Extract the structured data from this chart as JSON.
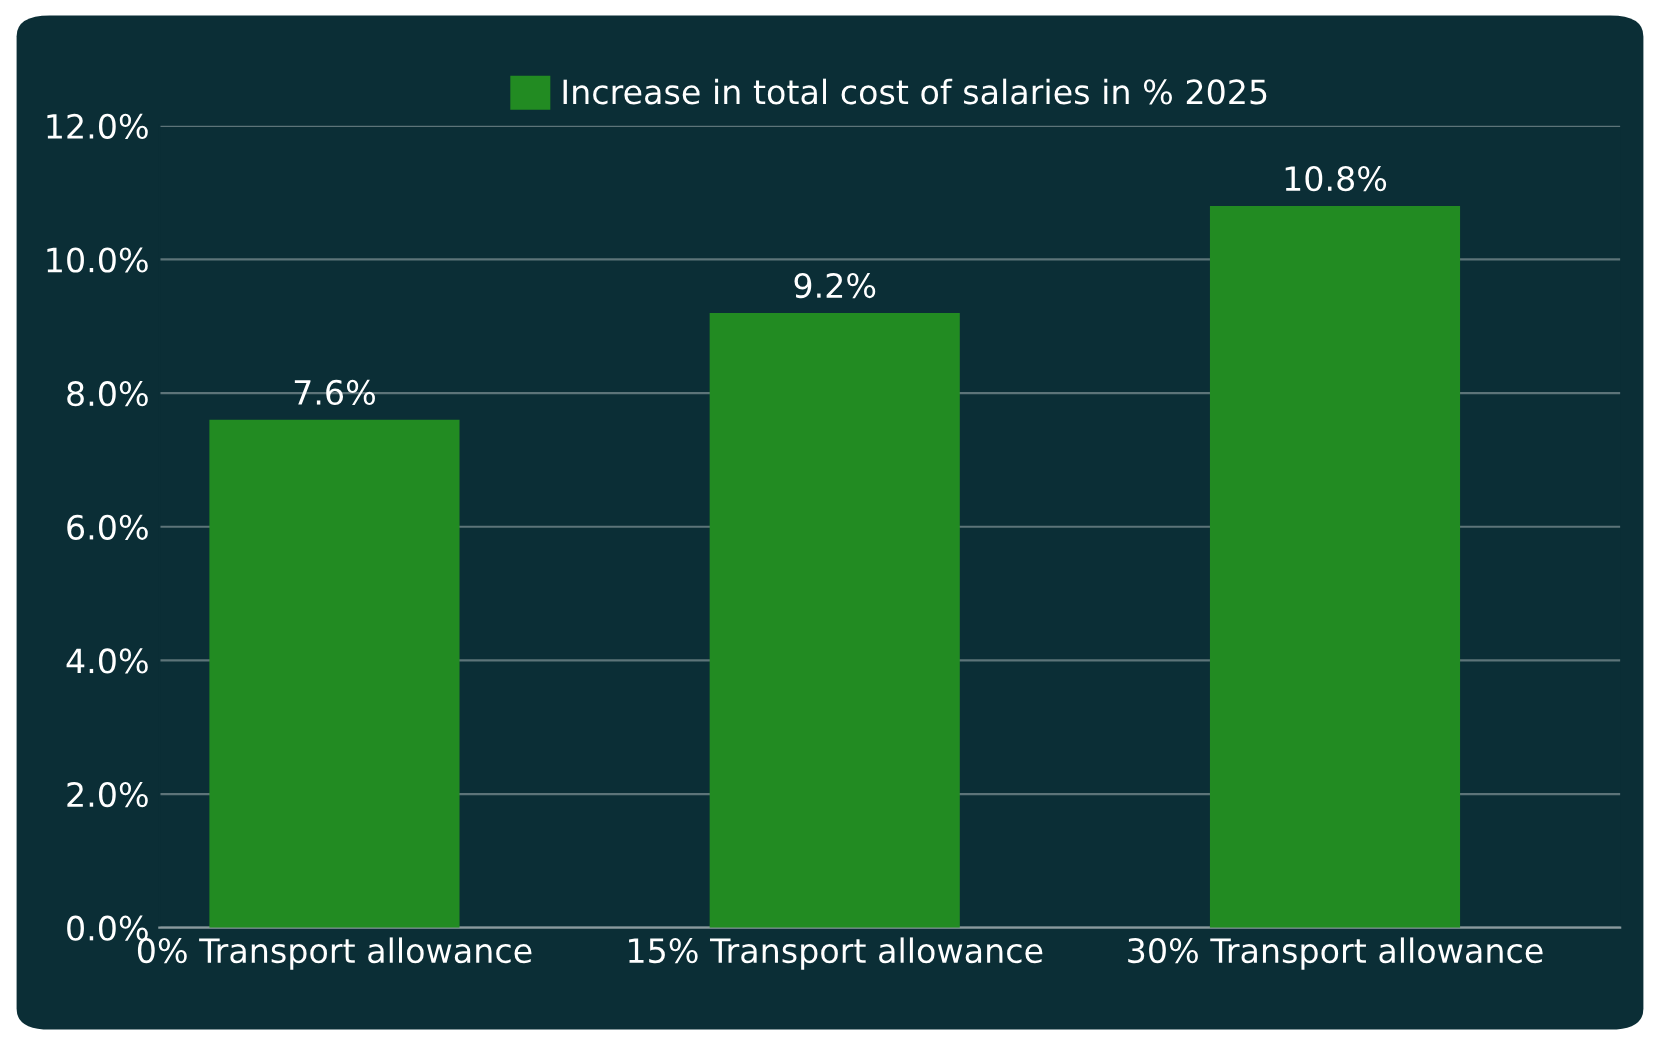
{
  "chart_data": {
    "type": "bar",
    "categories": [
      "0% Transport allowance",
      "15% Transport allowance",
      "30% Transport allowance"
    ],
    "series": [
      {
        "name": "Increase in total cost of salaries in % 2025",
        "color": "#228b22",
        "values": [
          7.6,
          9.2,
          10.8
        ],
        "value_labels": [
          "7.6%",
          "9.2%",
          "10.8%"
        ]
      }
    ],
    "ylim": [
      0,
      12
    ],
    "yticks": [
      {
        "value": 0,
        "label": "0.0%"
      },
      {
        "value": 2,
        "label": "2.0%"
      },
      {
        "value": 4,
        "label": "4.0%"
      },
      {
        "value": 6,
        "label": "6.0%"
      },
      {
        "value": 8,
        "label": "8.0%"
      },
      {
        "value": 10,
        "label": "10.0%"
      },
      {
        "value": 12,
        "label": "12.0%"
      }
    ],
    "grid": "y",
    "legend": "top"
  }
}
